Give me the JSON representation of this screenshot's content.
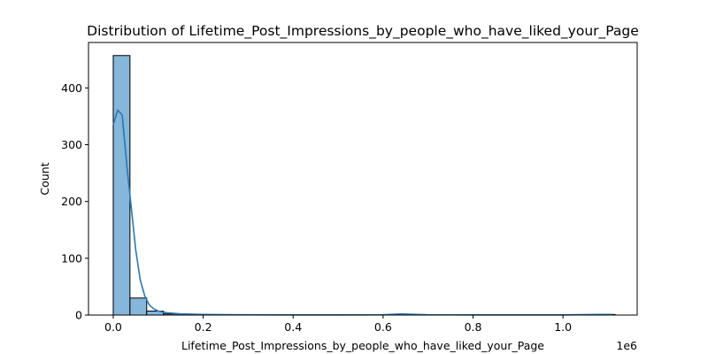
{
  "chart_data": {
    "type": "bar",
    "title": "Distribution of Lifetime_Post_Impressions_by_people_who_have_liked_your_Page",
    "xlabel": "Lifetime_Post_Impressions_by_people_who_have_liked_your_Page",
    "ylabel": "Count",
    "x_offset_label": "1e6",
    "xlim": [
      -55000,
      1165000
    ],
    "ylim": [
      0,
      480
    ],
    "x_ticks": [
      {
        "value": 0.0,
        "label": "0.0"
      },
      {
        "value": 200000,
        "label": "0.2"
      },
      {
        "value": 400000,
        "label": "0.4"
      },
      {
        "value": 600000,
        "label": "0.6"
      },
      {
        "value": 800000,
        "label": "0.8"
      },
      {
        "value": 1000000,
        "label": "1.0"
      }
    ],
    "y_ticks": [
      0,
      100,
      200,
      300,
      400
    ],
    "bin_start": 0,
    "bin_width": 37200,
    "bin_counts": [
      457,
      30,
      7,
      2,
      1,
      0,
      0,
      0,
      0,
      0,
      0,
      0,
      0,
      0,
      0,
      0,
      0,
      1,
      0,
      0,
      0,
      0,
      0,
      0,
      0,
      0,
      0,
      0,
      0,
      1
    ],
    "kde_x": [
      0,
      10000,
      20000,
      30000,
      40000,
      50000,
      60000,
      70000,
      80000,
      90000,
      100000,
      120000,
      150000,
      200000,
      300000,
      400000,
      500000,
      600000,
      640000,
      660000,
      700000,
      800000,
      900000,
      1000000,
      1080000,
      1110000
    ],
    "kde_y": [
      335,
      361,
      352,
      265,
      190,
      115,
      62,
      34,
      18,
      11,
      7,
      4,
      2,
      1,
      0.5,
      0.3,
      0.3,
      0.5,
      2,
      1.5,
      0.5,
      0.3,
      0.3,
      0.3,
      1,
      1
    ],
    "colors": {
      "bar_fill": "#86b6d9",
      "bar_edge": "#000000",
      "kde_line": "#2a77b4",
      "axis": "#000000"
    },
    "grid": false,
    "legend": "none"
  }
}
